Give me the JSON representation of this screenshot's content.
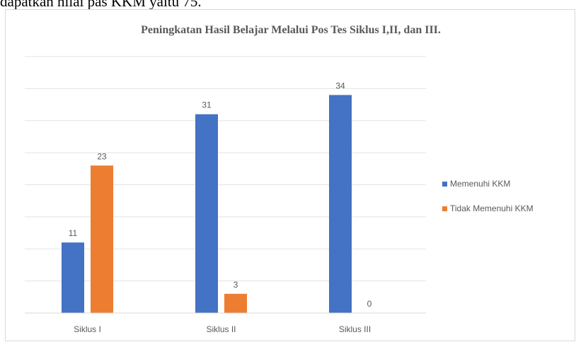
{
  "page_caption": "dapatkan nilai pas KKM yaitu 75.",
  "chart_data": {
    "type": "bar",
    "title": "Peningkatan Hasil Belajar Melalui Pos Tes Siklus  I,II, dan III.",
    "categories": [
      "Siklus I",
      "Siklus II",
      "Siklus III"
    ],
    "series": [
      {
        "name": "Memenuhi KKM",
        "values": [
          11,
          31,
          34
        ],
        "color": "#4472c4"
      },
      {
        "name": "Tidak Memenuhi KKM",
        "values": [
          23,
          3,
          0
        ],
        "color": "#ed7d31"
      }
    ],
    "xlabel": "",
    "ylabel": "",
    "ylim": [
      0,
      40
    ],
    "y_gridline_step": 5,
    "grid": true,
    "legend_position": "right",
    "data_labels": true
  }
}
